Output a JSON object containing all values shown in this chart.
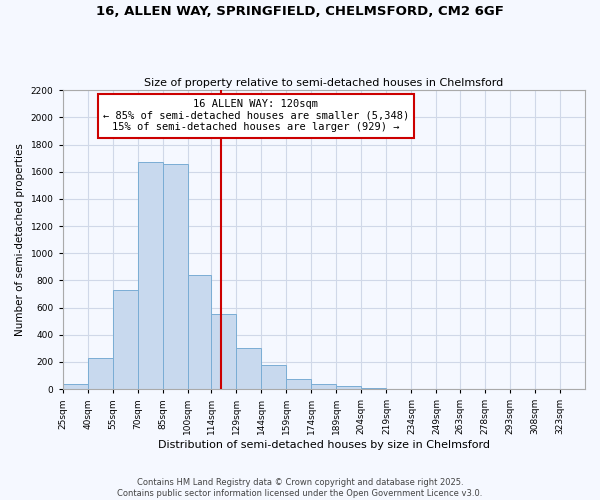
{
  "title1": "16, ALLEN WAY, SPRINGFIELD, CHELMSFORD, CM2 6GF",
  "title2": "Size of property relative to semi-detached houses in Chelmsford",
  "xlabel": "Distribution of semi-detached houses by size in Chelmsford",
  "ylabel": "Number of semi-detached properties",
  "bin_labels": [
    "25sqm",
    "40sqm",
    "55sqm",
    "70sqm",
    "85sqm",
    "100sqm",
    "114sqm",
    "129sqm",
    "144sqm",
    "159sqm",
    "174sqm",
    "189sqm",
    "204sqm",
    "219sqm",
    "234sqm",
    "249sqm",
    "263sqm",
    "278sqm",
    "293sqm",
    "308sqm",
    "323sqm"
  ],
  "bin_edges": [
    25,
    40,
    55,
    70,
    85,
    100,
    114,
    129,
    144,
    159,
    174,
    189,
    204,
    219,
    234,
    249,
    263,
    278,
    293,
    308,
    323
  ],
  "bar_heights": [
    40,
    225,
    730,
    1670,
    1655,
    840,
    555,
    300,
    180,
    75,
    35,
    20,
    10,
    0,
    0,
    0,
    0,
    0,
    0,
    0
  ],
  "bar_color": "#c8d9ee",
  "bar_edge_color": "#7aadd4",
  "property_value": 120,
  "vline_color": "#cc0000",
  "annotation_line1": "16 ALLEN WAY: 120sqm",
  "annotation_line2": "← 85% of semi-detached houses are smaller (5,348)",
  "annotation_line3": "15% of semi-detached houses are larger (929) →",
  "annotation_box_edgecolor": "#cc0000",
  "ylim": [
    0,
    2200
  ],
  "yticks": [
    0,
    200,
    400,
    600,
    800,
    1000,
    1200,
    1400,
    1600,
    1800,
    2000,
    2200
  ],
  "footer1": "Contains HM Land Registry data © Crown copyright and database right 2025.",
  "footer2": "Contains public sector information licensed under the Open Government Licence v3.0.",
  "bg_color": "#f5f8ff",
  "grid_color": "#d0d8e8"
}
